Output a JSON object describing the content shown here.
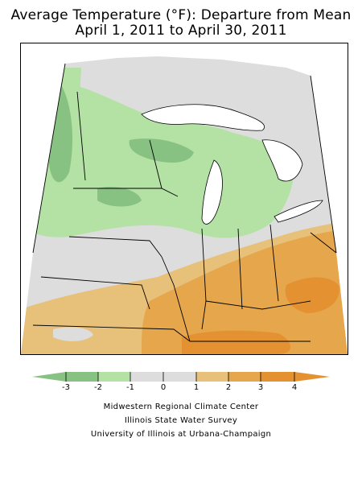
{
  "title_line1": "Average Temperature (°F): Departure from Mean",
  "title_line2": "April 1, 2011 to April 30, 2011",
  "legend": {
    "ticks": [
      "-3",
      "-2",
      "-1",
      "0",
      "1",
      "2",
      "3",
      "4"
    ],
    "colors": [
      "#88c282",
      "#b3e2a4",
      "#dddddd",
      "#e7c07a",
      "#e5a64c",
      "#e49132"
    ]
  },
  "credits": [
    "Midwestern Regional Climate Center",
    "Illinois State Water Survey",
    "University of Illinois at Urbana-Champaign"
  ],
  "map_colors": {
    "below_2_to_3": "#88c282",
    "below_1_to_2": "#b3e2a4",
    "near_normal": "#dddddd",
    "above_1_to_2": "#e7c07a",
    "above_2_to_3": "#e5a64c",
    "above_3_to_4": "#e49132",
    "water": "#ffffff"
  }
}
